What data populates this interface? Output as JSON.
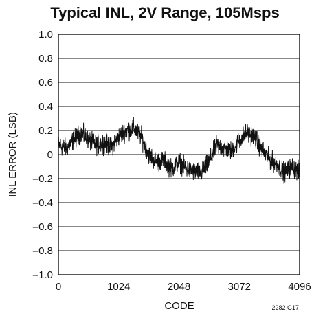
{
  "chart_data": {
    "type": "line",
    "title": "Typical INL, 2V Range, 105Msps",
    "xlabel": "CODE",
    "ylabel": "INL ERROR (LSB)",
    "xlim": [
      0,
      4096
    ],
    "ylim": [
      -1.0,
      1.0
    ],
    "x_ticks": [
      "0",
      "1024",
      "2048",
      "3072",
      "4096"
    ],
    "y_ticks": [
      "1.0",
      "0.8",
      "0.6",
      "0.4",
      "0.2",
      "0",
      "–0.2",
      "–0.4",
      "–0.6",
      "–0.8",
      "–1.0"
    ],
    "grid": true,
    "figure_id": "2282 G17",
    "series": [
      {
        "x": [
          0,
          128,
          256,
          384,
          512,
          640,
          768,
          896,
          1024,
          1152,
          1280,
          1408,
          1536,
          1664,
          1792,
          1920,
          2048,
          2176,
          2304,
          2432,
          2560,
          2688,
          2816,
          2944,
          3072,
          3200,
          3328,
          3456,
          3584,
          3712,
          3840,
          3968,
          4096
        ],
        "values": [
          0.08,
          0.05,
          0.12,
          0.18,
          0.12,
          0.08,
          0.1,
          0.06,
          0.15,
          0.2,
          0.22,
          0.15,
          0.0,
          -0.06,
          -0.05,
          -0.12,
          -0.06,
          -0.12,
          -0.14,
          -0.15,
          -0.06,
          0.08,
          0.05,
          0.03,
          0.12,
          0.18,
          0.15,
          0.04,
          -0.04,
          -0.08,
          -0.15,
          -0.1,
          -0.15
        ],
        "noise_amplitude": 0.1
      }
    ]
  }
}
